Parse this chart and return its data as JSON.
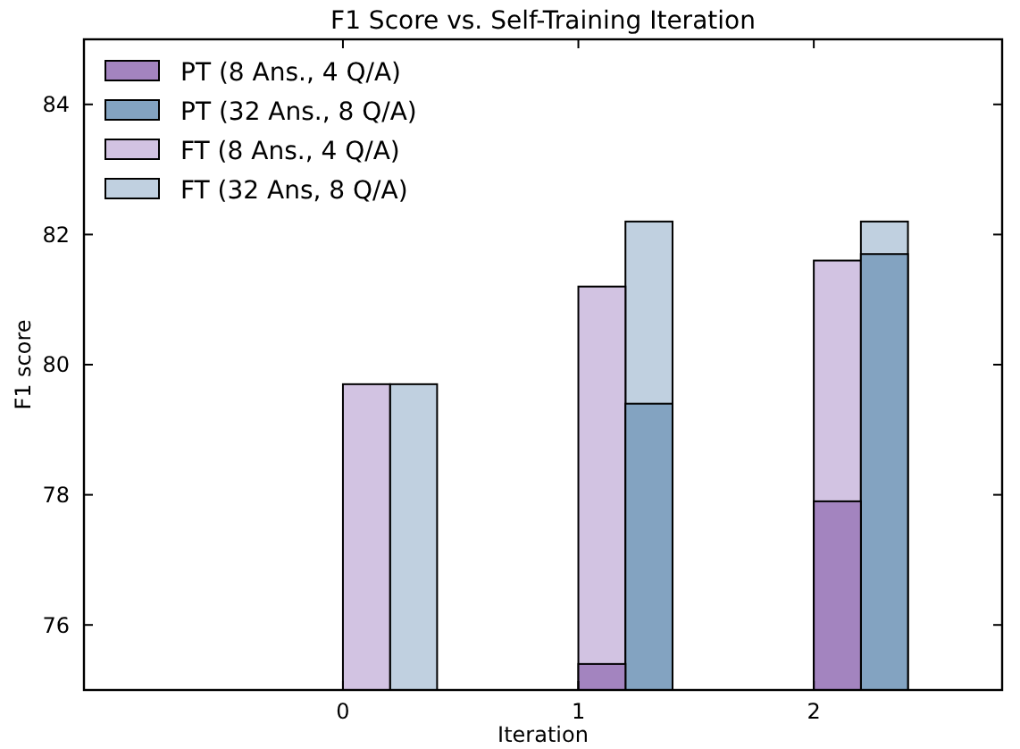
{
  "chart_data": {
    "type": "bar",
    "title": "F1 Score vs. Self-Training Iteration",
    "xlabel": "Iteration",
    "ylabel": "F1 score",
    "xlim": [
      -1.1,
      2.8
    ],
    "xticks": [
      0,
      1,
      2
    ],
    "ylim": [
      75,
      85
    ],
    "yticks": [
      76,
      78,
      80,
      82,
      84
    ],
    "grid": false,
    "legend": "top left",
    "series": [
      {
        "name": "PT (8 Ans., 4 Q/A)",
        "color": "#a384bf",
        "x": [
          1,
          2
        ],
        "values": [
          75.4,
          77.9
        ]
      },
      {
        "name": "PT (32 Ans., 8 Q/A)",
        "color": "#83a3c1",
        "x": [
          1.2,
          2.2
        ],
        "values": [
          79.4,
          81.7
        ]
      },
      {
        "name": "FT (8 Ans., 4 Q/A)",
        "color": "#d2c3e2",
        "x": [
          0,
          1,
          2
        ],
        "values": [
          79.7,
          81.2,
          81.6
        ]
      },
      {
        "name": "FT (32 Ans, 8 Q/A)",
        "color": "#c0d0e0",
        "x": [
          0.2,
          1.2,
          2.2
        ],
        "values": [
          79.7,
          82.2,
          82.2
        ]
      }
    ]
  }
}
